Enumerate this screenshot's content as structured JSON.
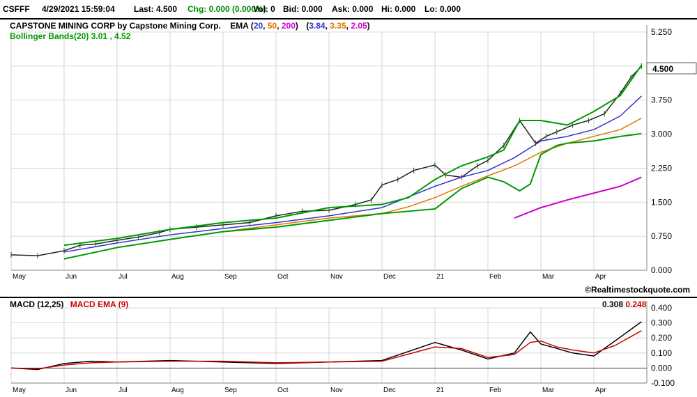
{
  "quote": {
    "symbol": "CSFFF",
    "datetime": "4/29/2021 15:59:04",
    "last": "Last: 4.500",
    "chg": "Chg: 0.000 (0.000%)",
    "vol": "Vol: 0",
    "bid": "Bid: 0.000",
    "ask": "Ask: 0.000",
    "hi": "Hi: 0.000",
    "lo": "Lo: 0.000"
  },
  "colors": {
    "ema20": "#3333cc",
    "ema50": "#e07800",
    "ema200": "#cc00cc",
    "bollinger": "#009900",
    "macd": "#000000",
    "macd_ema": "#cc0000",
    "up_bar": "#006600",
    "down_bar": "#cc0000",
    "grid": "#cccccc"
  },
  "legend": {
    "company": "CAPSTONE MINING CORP by Capstone Mining Corp.",
    "ema_label": "EMA (",
    "ema_p1": "20",
    "ema_p2": "50",
    "ema_p3": "200",
    "ema_close": ")",
    "ema_open2": "(",
    "ema_v1": "3.84",
    "ema_v2": "3.35",
    "ema_v3": "2.05",
    "ema_close2": ")",
    "bollinger": "Bollinger Bands(20) 3.01 , 4.52",
    "last_price_tag": "4.500"
  },
  "macd_legend": {
    "macd_label": "MACD (12,25)",
    "ema_label": "MACD EMA (9)",
    "macd_value": "0.308",
    "ema_value": "0.248"
  },
  "credit": "©Realtimestockquote.com",
  "chart_data": [
    {
      "type": "line",
      "title": "CAPSTONE MINING CORP by Capstone Mining Corp.",
      "x_labels": [
        "May",
        "Jun",
        "Jul",
        "Aug",
        "Sep",
        "Oct",
        "Nov",
        "Dec",
        "21",
        "Feb",
        "Mar",
        "Apr"
      ],
      "y_ticks": [
        "0.000",
        "0.750",
        "1.500",
        "2.250",
        "3.000",
        "3.750",
        "4.500",
        "5.250"
      ],
      "ylim": [
        0,
        5.25
      ],
      "grid": true,
      "series": [
        {
          "name": "Price",
          "x": [
            0,
            0.5,
            1,
            1.3,
            1.6,
            2,
            2.4,
            2.8,
            3,
            3.5,
            4,
            4.5,
            5,
            5.5,
            6,
            6.5,
            6.8,
            7,
            7.3,
            7.6,
            8,
            8.2,
            8.5,
            8.8,
            9,
            9.3,
            9.6,
            9.9,
            10.1,
            10.3,
            10.6,
            10.9,
            11.2,
            11.5,
            11.7,
            11.9
          ],
          "values": [
            0.34,
            0.32,
            0.43,
            0.55,
            0.58,
            0.66,
            0.73,
            0.83,
            0.9,
            0.95,
            1.0,
            1.05,
            1.2,
            1.3,
            1.32,
            1.45,
            1.55,
            1.88,
            2.0,
            2.2,
            2.32,
            2.1,
            2.05,
            2.3,
            2.42,
            2.75,
            3.3,
            2.8,
            2.95,
            3.05,
            3.2,
            3.3,
            3.45,
            3.9,
            4.25,
            4.5
          ]
        },
        {
          "name": "EMA 20",
          "x": [
            1,
            2,
            3,
            4,
            5,
            6,
            7,
            8,
            8.5,
            9,
            9.5,
            9.8,
            10,
            10.5,
            11,
            11.5,
            11.9
          ],
          "values": [
            0.4,
            0.6,
            0.78,
            0.92,
            1.05,
            1.2,
            1.38,
            1.85,
            2.05,
            2.2,
            2.48,
            2.7,
            2.85,
            2.95,
            3.1,
            3.4,
            3.84
          ]
        },
        {
          "name": "EMA 50",
          "x": [
            2,
            3,
            4,
            5,
            6,
            7,
            7.5,
            8,
            8.5,
            9,
            9.5,
            10,
            10.5,
            11,
            11.5,
            11.9
          ],
          "values": [
            0.5,
            0.68,
            0.85,
            1.0,
            1.15,
            1.25,
            1.4,
            1.6,
            1.85,
            2.08,
            2.3,
            2.6,
            2.8,
            2.95,
            3.1,
            3.35
          ]
        },
        {
          "name": "EMA 200",
          "x": [
            9.5,
            10,
            10.5,
            11,
            11.5,
            11.9
          ],
          "values": [
            1.15,
            1.38,
            1.55,
            1.7,
            1.85,
            2.05
          ]
        },
        {
          "name": "Bollinger Upper",
          "x": [
            1,
            2,
            3,
            4,
            5,
            6,
            7,
            7.5,
            8,
            8.5,
            9,
            9.3,
            9.6,
            10,
            10.5,
            11,
            11.5,
            11.9
          ],
          "values": [
            0.55,
            0.7,
            0.9,
            1.05,
            1.15,
            1.38,
            1.45,
            1.6,
            2.0,
            2.3,
            2.5,
            2.65,
            3.3,
            3.3,
            3.2,
            3.5,
            3.85,
            4.52
          ]
        },
        {
          "name": "Bollinger Lower",
          "x": [
            1,
            2,
            3,
            4,
            5,
            6,
            7,
            7.5,
            8,
            8.5,
            9,
            9.3,
            9.6,
            9.8,
            10,
            10.3,
            10.5,
            11,
            11.5,
            11.9
          ],
          "values": [
            0.25,
            0.5,
            0.68,
            0.85,
            0.95,
            1.1,
            1.25,
            1.3,
            1.35,
            1.8,
            2.05,
            1.95,
            1.75,
            1.9,
            2.55,
            2.75,
            2.8,
            2.85,
            2.95,
            3.01
          ]
        }
      ]
    },
    {
      "type": "line",
      "title": "MACD (12,25)",
      "x_labels": [
        "May",
        "Jun",
        "Jul",
        "Aug",
        "Sep",
        "Oct",
        "Nov",
        "Dec",
        "21",
        "Feb",
        "Mar",
        "Apr"
      ],
      "y_ticks": [
        "-0.100",
        "0.000",
        "0.100",
        "0.200",
        "0.300",
        "0.400"
      ],
      "ylim": [
        -0.1,
        0.4
      ],
      "series": [
        {
          "name": "MACD",
          "x": [
            0,
            0.5,
            1,
            1.5,
            2,
            3,
            4,
            5,
            6,
            7,
            8,
            8.5,
            9,
            9.5,
            9.8,
            10,
            10.3,
            10.6,
            11,
            11.4,
            11.9
          ],
          "values": [
            0.0,
            -0.01,
            0.03,
            0.045,
            0.04,
            0.05,
            0.04,
            0.03,
            0.04,
            0.05,
            0.17,
            0.12,
            0.06,
            0.1,
            0.24,
            0.16,
            0.13,
            0.1,
            0.08,
            0.18,
            0.308
          ]
        },
        {
          "name": "MACD EMA",
          "x": [
            0,
            0.5,
            1,
            1.5,
            2,
            3,
            4,
            5,
            6,
            7,
            8,
            8.5,
            9,
            9.5,
            9.8,
            10,
            10.3,
            10.6,
            11,
            11.4,
            11.9
          ],
          "values": [
            0.0,
            -0.005,
            0.02,
            0.035,
            0.04,
            0.045,
            0.045,
            0.035,
            0.04,
            0.045,
            0.14,
            0.13,
            0.07,
            0.09,
            0.17,
            0.18,
            0.14,
            0.12,
            0.1,
            0.15,
            0.248
          ]
        }
      ]
    }
  ]
}
